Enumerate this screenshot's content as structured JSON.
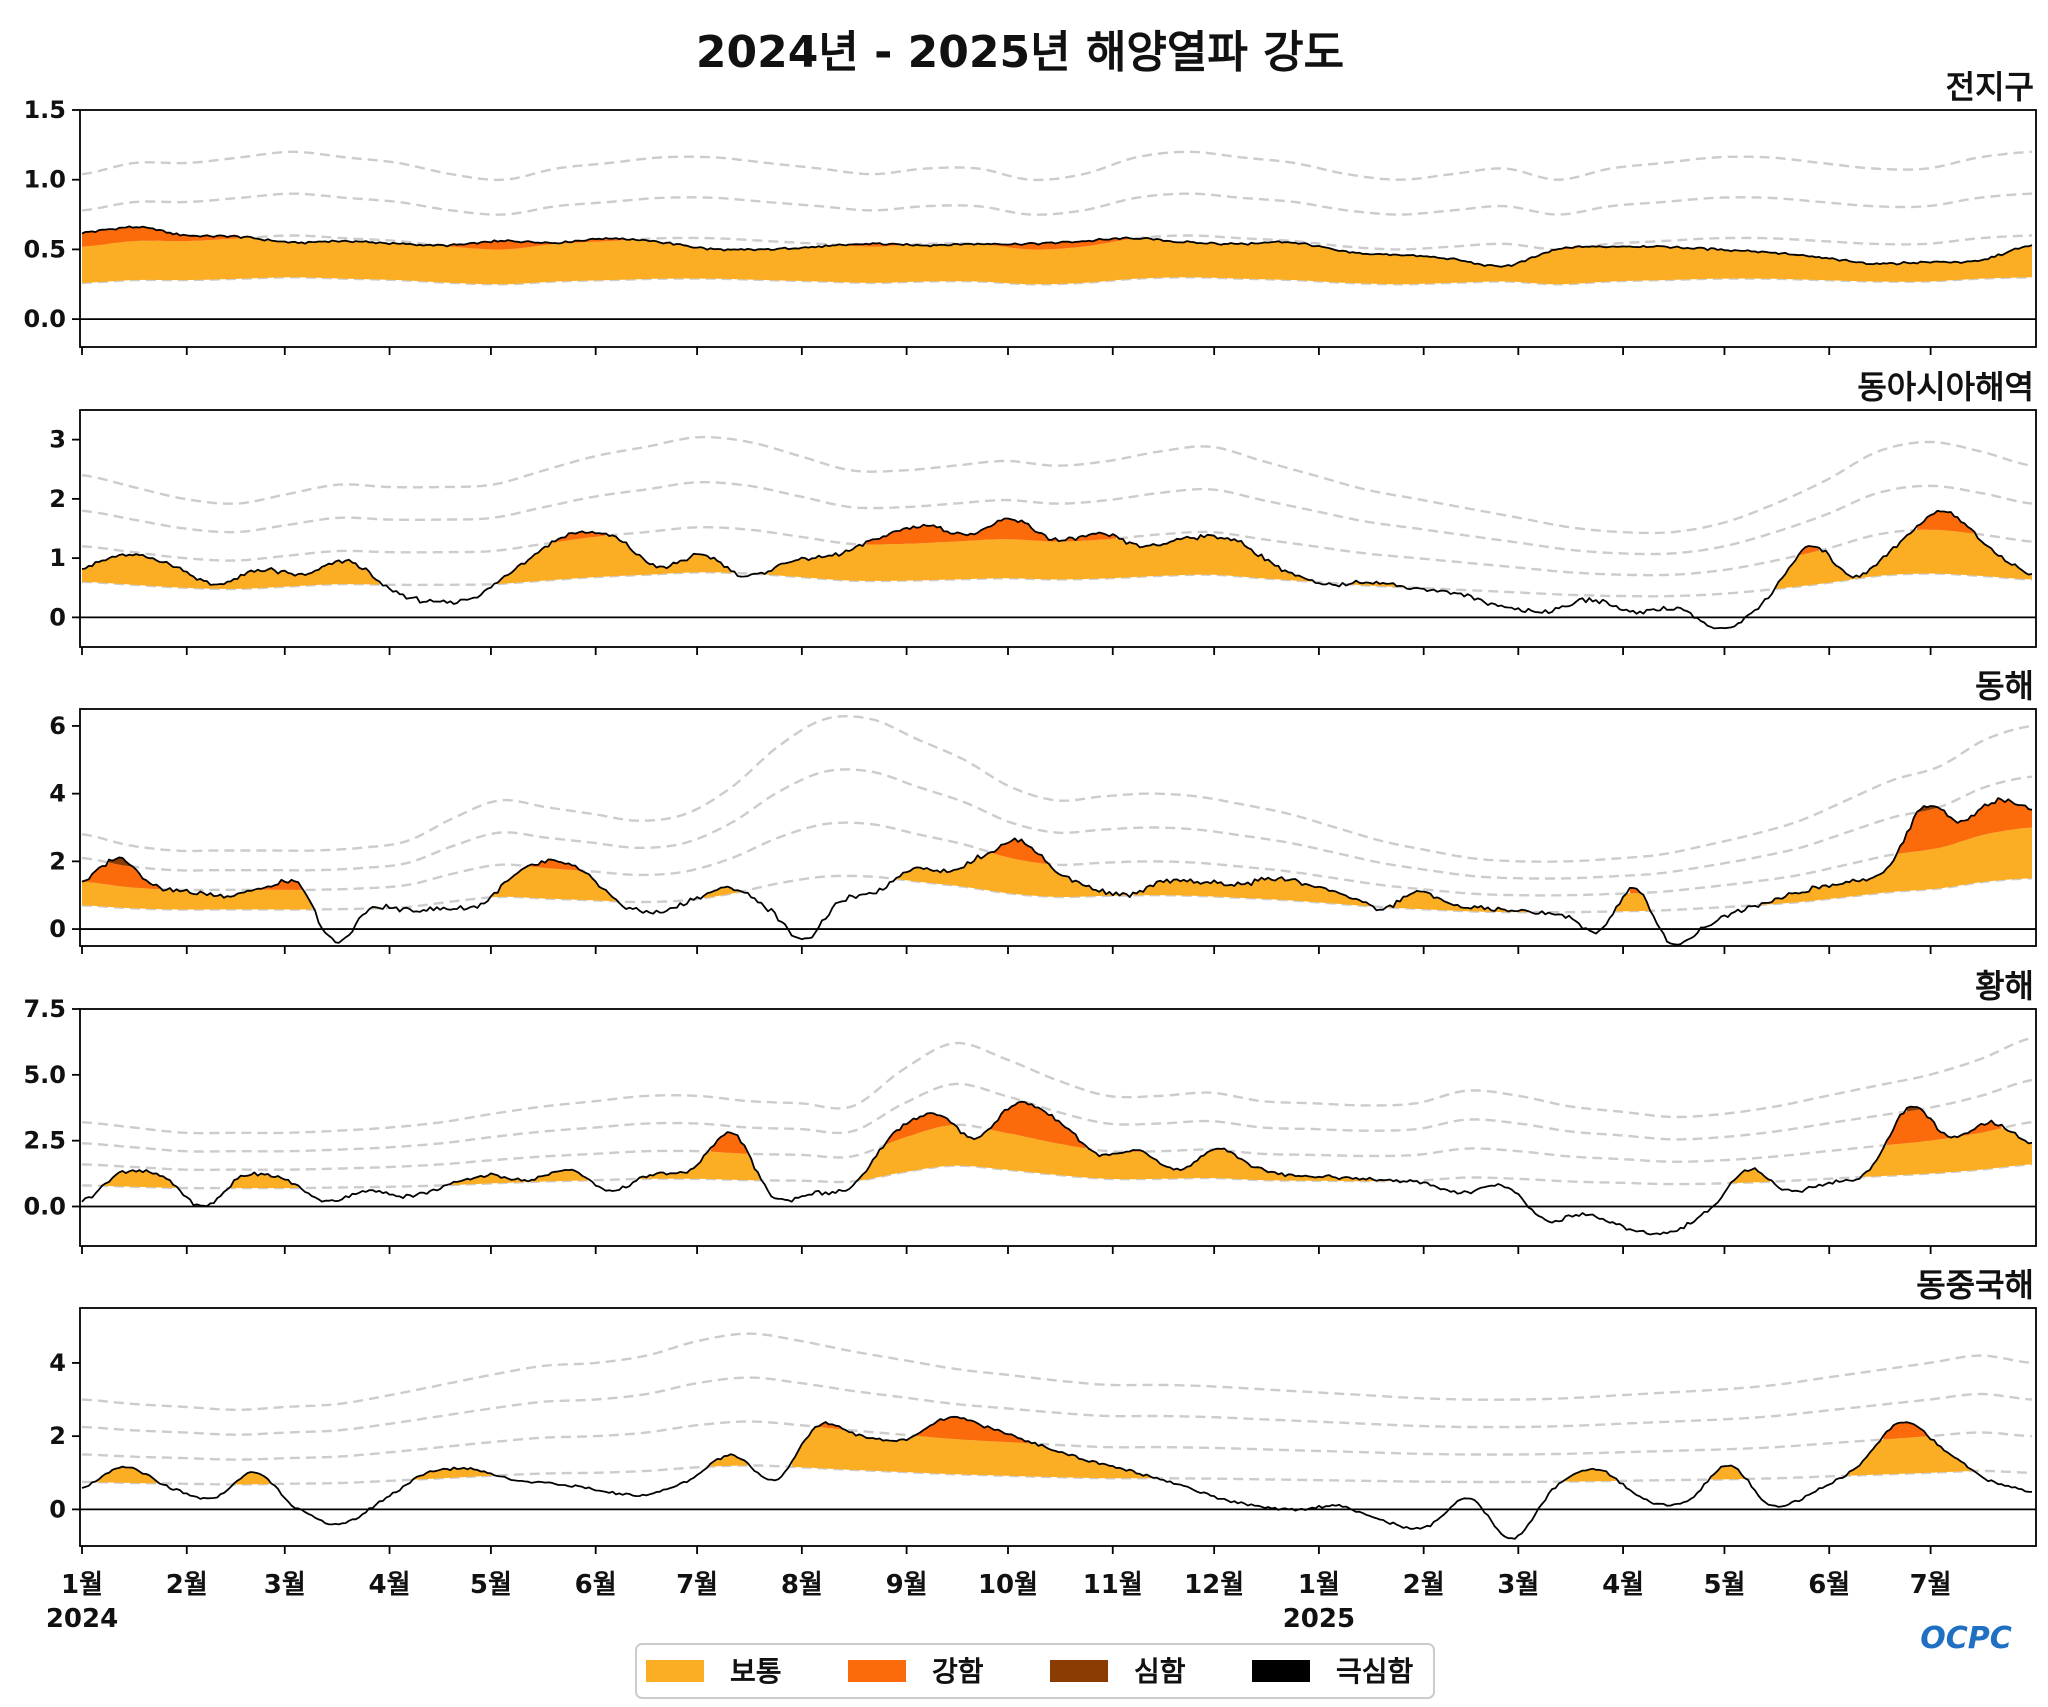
{
  "title": "2024년 - 2025년 해양열파 강도",
  "logo_text": "OCPC",
  "colors": {
    "moderate": "#FBAE24",
    "strong": "#FC6B0B",
    "severe": "#8B3C03",
    "extreme": "#000000",
    "threshold": "#cccccc",
    "line": "#000000"
  },
  "legend": [
    {
      "label": "보통",
      "color": "#FBAE24"
    },
    {
      "label": "강함",
      "color": "#FC6B0B"
    },
    {
      "label": "심함",
      "color": "#8B3C03"
    },
    {
      "label": "극심함",
      "color": "#000000"
    }
  ],
  "x_axis": {
    "month_labels": [
      "1월",
      "2월",
      "3월",
      "4월",
      "5월",
      "6월",
      "7월",
      "8월",
      "9월",
      "10월",
      "11월",
      "12월",
      "1월",
      "2월",
      "3월",
      "4월",
      "5월",
      "6월",
      "7월"
    ],
    "year_labels": [
      {
        "label": "2024",
        "month_index": 0
      },
      {
        "label": "2025",
        "month_index": 12
      }
    ],
    "start": "2024-01-01",
    "end": "2025-07-31"
  },
  "chart_data": [
    {
      "type": "area",
      "region": "전지구",
      "ylim": [
        -0.2,
        1.5
      ],
      "yticks": [
        "1.5",
        "1.0",
        "0.5",
        "0.0"
      ],
      "ytick_values": [
        1.5,
        1.0,
        0.5,
        0.0
      ],
      "threshold_month_values": [
        0.26,
        0.28,
        0.28,
        0.29,
        0.3,
        0.29,
        0.28,
        0.26,
        0.25,
        0.27,
        0.28,
        0.29,
        0.29,
        0.28,
        0.27,
        0.26,
        0.27,
        0.27,
        0.25,
        0.26,
        0.29,
        0.3,
        0.29,
        0.28,
        0.26,
        0.25,
        0.26,
        0.27,
        0.25,
        0.27,
        0.28,
        0.29,
        0.29,
        0.28,
        0.27,
        0.27,
        0.29,
        0.3
      ],
      "anomaly_month_values": [
        0.62,
        0.66,
        0.6,
        0.59,
        0.55,
        0.56,
        0.54,
        0.53,
        0.56,
        0.55,
        0.58,
        0.55,
        0.5,
        0.5,
        0.52,
        0.54,
        0.53,
        0.54,
        0.54,
        0.56,
        0.58,
        0.55,
        0.54,
        0.55,
        0.48,
        0.46,
        0.43,
        0.38,
        0.5,
        0.52,
        0.52,
        0.5,
        0.48,
        0.44,
        0.4,
        0.41,
        0.42,
        0.53
      ]
    },
    {
      "type": "area",
      "region": "동아시아해역",
      "ylim": [
        -0.5,
        3.5
      ],
      "yticks": [
        "3",
        "2",
        "1",
        "0"
      ],
      "ytick_values": [
        3,
        2,
        1,
        0
      ],
      "threshold_month_values": [
        0.6,
        0.55,
        0.5,
        0.48,
        0.52,
        0.56,
        0.55,
        0.55,
        0.56,
        0.62,
        0.68,
        0.72,
        0.76,
        0.74,
        0.68,
        0.62,
        0.62,
        0.64,
        0.66,
        0.64,
        0.66,
        0.7,
        0.72,
        0.66,
        0.6,
        0.54,
        0.5,
        0.46,
        0.42,
        0.38,
        0.36,
        0.36,
        0.4,
        0.48,
        0.58,
        0.7,
        0.74,
        0.7,
        0.64
      ],
      "anomaly_month_values": [
        0.85,
        1.05,
        0.9,
        0.55,
        0.8,
        0.72,
        0.95,
        0.45,
        0.25,
        0.4,
        0.95,
        1.4,
        1.35,
        0.85,
        1.05,
        0.7,
        0.95,
        1.05,
        1.35,
        1.55,
        1.4,
        1.65,
        1.3,
        1.4,
        1.2,
        1.35,
        1.3,
        0.85,
        0.55,
        0.6,
        0.5,
        0.4,
        0.2,
        0.1,
        0.3,
        0.1,
        0.15,
        -0.2,
        0.3,
        1.2,
        0.7,
        1.25,
        1.8,
        1.2,
        0.72
      ]
    },
    {
      "type": "area",
      "region": "동해",
      "ylim": [
        -0.5,
        6.5
      ],
      "yticks": [
        "6",
        "4",
        "2",
        "0"
      ],
      "ytick_values": [
        6,
        4,
        2,
        0
      ],
      "threshold_month_values": [
        0.7,
        0.62,
        0.58,
        0.58,
        0.58,
        0.58,
        0.6,
        0.65,
        0.82,
        0.95,
        0.9,
        0.85,
        0.8,
        0.85,
        1.05,
        1.35,
        1.55,
        1.55,
        1.4,
        1.25,
        1.05,
        0.95,
        0.98,
        1.0,
        0.98,
        0.92,
        0.85,
        0.75,
        0.65,
        0.58,
        0.52,
        0.5,
        0.5,
        0.52,
        0.55,
        0.62,
        0.7,
        0.8,
        0.95,
        1.1,
        1.2,
        1.4,
        1.5
      ],
      "anomaly_month_values": [
        1.4,
        2.1,
        1.3,
        1.1,
        1.0,
        1.2,
        1.3,
        -0.4,
        0.6,
        0.55,
        0.6,
        0.7,
        1.6,
        2.0,
        1.6,
        0.7,
        0.5,
        0.9,
        1.2,
        0.6,
        -0.3,
        0.8,
        1.1,
        1.8,
        1.7,
        2.2,
        2.6,
        1.7,
        1.2,
        1.0,
        1.4,
        1.4,
        1.3,
        1.5,
        1.3,
        1.0,
        0.6,
        1.1,
        0.7,
        0.6,
        0.5,
        0.4,
        -0.05,
        1.2,
        -0.4,
        0.1,
        0.6,
        0.9,
        1.2,
        1.4,
        1.8,
        3.6,
        3.2,
        3.8,
        3.6
      ]
    },
    {
      "type": "area",
      "region": "황해",
      "ylim": [
        -1.5,
        7.5
      ],
      "yticks": [
        "7.5",
        "5.0",
        "2.5",
        "0.0"
      ],
      "ytick_values": [
        7.5,
        5.0,
        2.5,
        0.0
      ],
      "threshold_month_values": [
        0.8,
        0.75,
        0.7,
        0.7,
        0.7,
        0.72,
        0.75,
        0.8,
        0.88,
        0.95,
        1.0,
        1.05,
        1.05,
        1.0,
        0.98,
        0.95,
        1.3,
        1.55,
        1.4,
        1.2,
        1.05,
        1.05,
        1.08,
        1.0,
        0.98,
        0.96,
        0.98,
        1.1,
        1.05,
        0.95,
        0.9,
        0.85,
        0.88,
        0.95,
        1.05,
        1.15,
        1.25,
        1.4,
        1.6
      ],
      "anomaly_month_values": [
        0.2,
        1.3,
        1.1,
        0.0,
        1.2,
        1.0,
        0.2,
        0.6,
        0.4,
        0.8,
        1.2,
        1.0,
        1.4,
        0.6,
        1.2,
        1.4,
        2.8,
        0.4,
        0.5,
        0.8,
        2.8,
        3.5,
        2.6,
        3.9,
        3.3,
        2.0,
        2.1,
        1.4,
        2.2,
        1.4,
        1.2,
        1.1,
        1.0,
        0.9,
        0.5,
        0.8,
        -0.5,
        -0.3,
        -0.8,
        -1.0,
        -0.2,
        1.4,
        0.6,
        0.9,
        1.4,
        3.8,
        2.6,
        3.2,
        2.4
      ]
    },
    {
      "type": "area",
      "region": "동중국해",
      "ylim": [
        -1.0,
        5.5
      ],
      "yticks": [
        "4",
        "2",
        "0"
      ],
      "ytick_values": [
        4,
        2,
        0
      ],
      "threshold_month_values": [
        0.75,
        0.72,
        0.7,
        0.68,
        0.7,
        0.72,
        0.78,
        0.85,
        0.92,
        0.98,
        1.0,
        1.05,
        1.15,
        1.2,
        1.15,
        1.08,
        1.02,
        0.96,
        0.92,
        0.88,
        0.85,
        0.85,
        0.84,
        0.82,
        0.8,
        0.78,
        0.76,
        0.75,
        0.75,
        0.76,
        0.78,
        0.8,
        0.82,
        0.85,
        0.9,
        0.95,
        1.0,
        1.05,
        1.0
      ],
      "anomaly_month_values": [
        0.6,
        1.15,
        0.6,
        0.3,
        1.0,
        0.0,
        -0.4,
        0.3,
        1.0,
        1.1,
        0.8,
        0.7,
        0.5,
        0.4,
        0.8,
        1.5,
        0.8,
        2.3,
        2.0,
        1.9,
        2.5,
        2.2,
        1.8,
        1.4,
        1.1,
        0.8,
        0.4,
        0.1,
        0.0,
        0.1,
        -0.3,
        -0.5,
        0.3,
        -0.8,
        0.6,
        1.1,
        0.3,
        0.2,
        1.2,
        0.1,
        0.5,
        1.2,
        2.4,
        1.6,
        0.8,
        0.5
      ]
    }
  ]
}
